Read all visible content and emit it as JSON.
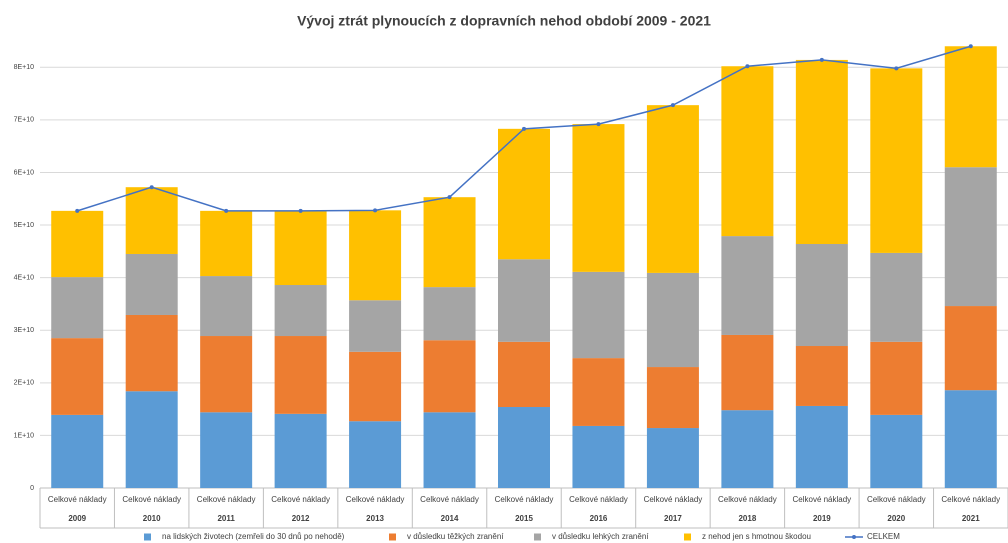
{
  "chart_data": {
    "type": "bar",
    "stacked": true,
    "title": "Vývoj ztrát plynoucích z dopravních nehod období 2009 - 2021",
    "sub_label": "Celkové náklady",
    "categories": [
      "2009",
      "2010",
      "2011",
      "2012",
      "2013",
      "2014",
      "2015",
      "2016",
      "2017",
      "2018",
      "2019",
      "2020",
      "2021"
    ],
    "series": [
      {
        "name": "na lidských životech (zemřeli do 30 dnů po nehodě)",
        "color": "#5b9bd5",
        "values": [
          13900000000,
          18400000000,
          14400000000,
          14100000000,
          12700000000,
          14400000000,
          15400000000,
          11800000000,
          11400000000,
          14800000000,
          15600000000,
          13900000000,
          18600000000
        ]
      },
      {
        "name": "v důsledku těžkých zranění",
        "color": "#ed7d31",
        "values": [
          14600000000,
          14500000000,
          14500000000,
          14800000000,
          13200000000,
          13700000000,
          12400000000,
          12900000000,
          11600000000,
          14300000000,
          11400000000,
          13900000000,
          16000000000
        ]
      },
      {
        "name": "v důsledku lehkých zranění",
        "color": "#a5a5a5",
        "values": [
          11600000000,
          11600000000,
          11400000000,
          9700000000,
          9800000000,
          10100000000,
          15700000000,
          16400000000,
          17900000000,
          18800000000,
          19400000000,
          16900000000,
          26400000000
        ]
      },
      {
        "name": "z nehod jen s hmotnou škodou",
        "color": "#ffc000",
        "values": [
          12600000000,
          12700000000,
          12400000000,
          14100000000,
          17100000000,
          17100000000,
          24800000000,
          28100000000,
          31900000000,
          32300000000,
          35000000000,
          35100000000,
          23000000000
        ]
      },
      {
        "name": "CELKEM",
        "type": "line",
        "color": "#4472c4",
        "values": [
          52700000000,
          57200000000,
          52700000000,
          52700000000,
          52800000000,
          55300000000,
          68300000000,
          69200000000,
          72800000000,
          80200000000,
          81400000000,
          79800000000,
          84000000000
        ]
      }
    ],
    "ylim": [
      0,
      85000000000
    ],
    "yticks": [
      0,
      {
        "value": 10000000000,
        "label": "1E+10"
      },
      {
        "value": 20000000000,
        "label": "2E+10"
      },
      {
        "value": 30000000000,
        "label": "3E+10"
      },
      {
        "value": 40000000000,
        "label": "4E+10"
      },
      {
        "value": 50000000000,
        "label": "5E+10"
      },
      {
        "value": 60000000000,
        "label": "6E+10"
      },
      {
        "value": 70000000000,
        "label": "7E+10"
      },
      {
        "value": 80000000000,
        "label": "8E+10"
      }
    ],
    "grid": true,
    "legend": "bottom"
  }
}
